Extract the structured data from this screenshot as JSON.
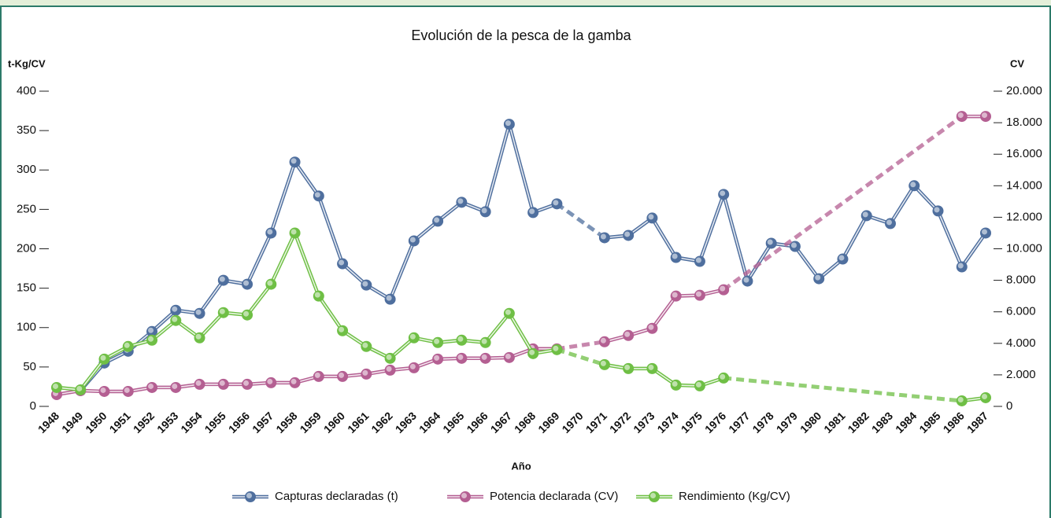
{
  "chart_data": {
    "type": "line",
    "title": "Evolución de la pesca de la gamba",
    "ylabel": "t-Kg/CV",
    "y2label": "CV",
    "xlabel": "Año",
    "categories": [
      "1948",
      "1949",
      "1950",
      "1951",
      "1952",
      "1953",
      "1954",
      "1955",
      "1956",
      "1957",
      "1958",
      "1959",
      "1960",
      "1961",
      "1962",
      "1963",
      "1964",
      "1965",
      "1966",
      "1967",
      "1968",
      "1969",
      "1970",
      "1971",
      "1972",
      "1973",
      "1974",
      "1975",
      "1976",
      "1977",
      "1978",
      "1979",
      "1980",
      "1981",
      "1982",
      "1983",
      "1984",
      "1985",
      "1986",
      "1987"
    ],
    "ylim": [
      0,
      400
    ],
    "yticks": [
      0,
      50,
      100,
      150,
      200,
      250,
      300,
      350,
      400
    ],
    "y2lim": [
      0,
      20000
    ],
    "y2ticks": [
      0,
      {
        "value": 2000,
        "label": "2.000"
      },
      {
        "value": 4000,
        "label": "4.000"
      },
      {
        "value": 6000,
        "label": "6.000"
      },
      {
        "value": 8000,
        "label": "8.000"
      },
      {
        "value": 10000,
        "label": "10.000"
      },
      {
        "value": 12000,
        "label": "12.000"
      },
      {
        "value": 14000,
        "label": "14.000"
      },
      {
        "value": 16000,
        "label": "16.000"
      },
      {
        "value": 18000,
        "label": "18.000"
      },
      {
        "value": 20000,
        "label": "20.000"
      }
    ],
    "grid": false,
    "legend": "bottom",
    "series": [
      {
        "name": "Capturas declaradas (t)",
        "color": "#4f6f9e",
        "axis": "y",
        "values": [
          null,
          20,
          55,
          70,
          95,
          122,
          118,
          160,
          155,
          220,
          310,
          267,
          181,
          154,
          136,
          210,
          235,
          259,
          247,
          358,
          246,
          257,
          null,
          214,
          217,
          239,
          189,
          184,
          269,
          159,
          207,
          203,
          162,
          187,
          242,
          232,
          280,
          248,
          177,
          220
        ]
      },
      {
        "name": "Potencia declarada (CV)",
        "color": "#b45f92",
        "axis": "y2",
        "values": [
          750,
          1000,
          950,
          950,
          1200,
          1200,
          1400,
          1400,
          1400,
          1500,
          1500,
          1900,
          1900,
          2050,
          2300,
          2450,
          3000,
          3050,
          3050,
          3100,
          3650,
          3650,
          null,
          4100,
          4500,
          4950,
          7000,
          7050,
          7400,
          null,
          null,
          null,
          null,
          null,
          null,
          null,
          null,
          null,
          18400,
          18400
        ]
      },
      {
        "name": "Rendimiento (Kg/CV)",
        "color": "#6fbf45",
        "axis": "y",
        "values": [
          24,
          21,
          60,
          76,
          84,
          109,
          87,
          119,
          116,
          155,
          220,
          140,
          96,
          76,
          61,
          87,
          81,
          84,
          81,
          118,
          67,
          72,
          null,
          53,
          48,
          48,
          27,
          26,
          36,
          null,
          null,
          null,
          null,
          null,
          null,
          null,
          null,
          null,
          7,
          11
        ]
      }
    ]
  }
}
